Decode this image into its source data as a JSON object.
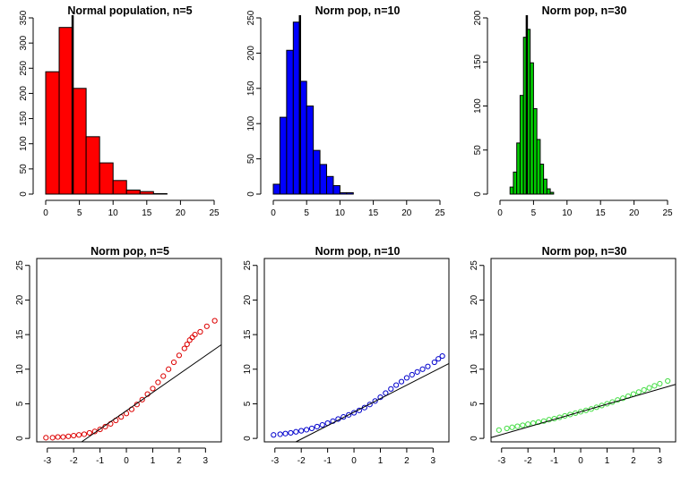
{
  "chart_data": [
    {
      "type": "histogram",
      "title": "Normal population, n=5",
      "color": "#ff0000",
      "bin_width": 2,
      "bin_starts": [
        0,
        2,
        4,
        6,
        8,
        10,
        12,
        14,
        16
      ],
      "counts": [
        243,
        331,
        210,
        114,
        62,
        27,
        8,
        5,
        1
      ],
      "mean_line_x": 4,
      "xlim": [
        0,
        25
      ],
      "xticks": [
        0,
        5,
        10,
        15,
        20,
        25
      ],
      "ylim": [
        0,
        350
      ],
      "yticks": [
        0,
        50,
        100,
        150,
        200,
        250,
        300,
        350
      ]
    },
    {
      "type": "histogram",
      "title": "Norm pop, n=10",
      "color": "#0000ff",
      "bin_width": 1,
      "bin_starts": [
        0,
        1,
        2,
        3,
        4,
        5,
        6,
        7,
        8,
        9,
        10,
        11
      ],
      "counts": [
        14,
        109,
        204,
        244,
        160,
        125,
        62,
        42,
        25,
        12,
        2,
        2
      ],
      "mean_line_x": 4,
      "xlim": [
        0,
        25
      ],
      "xticks": [
        0,
        5,
        10,
        15,
        20,
        25
      ],
      "ylim": [
        0,
        250
      ],
      "yticks": [
        0,
        50,
        100,
        150,
        200,
        250
      ]
    },
    {
      "type": "histogram",
      "title": "Norm pop, n=30",
      "color": "#00cc00",
      "bin_width": 0.5,
      "bin_starts": [
        1.5,
        2,
        2.5,
        3,
        3.5,
        4,
        4.5,
        5,
        5.5,
        6,
        6.5,
        7,
        7.5
      ],
      "counts": [
        8,
        25,
        58,
        112,
        178,
        187,
        149,
        97,
        62,
        34,
        17,
        6,
        2
      ],
      "mean_line_x": 4,
      "xlim": [
        0,
        25
      ],
      "xticks": [
        0,
        5,
        10,
        15,
        20,
        25
      ],
      "ylim": [
        0,
        200
      ],
      "yticks": [
        0,
        50,
        100,
        150,
        200
      ]
    },
    {
      "type": "scatter",
      "subtype": "normal-qq",
      "title": "Norm pop, n=5",
      "color": "#dd0000",
      "points": [
        [
          -3.05,
          0.1
        ],
        [
          -2.8,
          0.1
        ],
        [
          -2.6,
          0.2
        ],
        [
          -2.4,
          0.2
        ],
        [
          -2.2,
          0.3
        ],
        [
          -2.0,
          0.4
        ],
        [
          -1.8,
          0.5
        ],
        [
          -1.6,
          0.6
        ],
        [
          -1.4,
          0.8
        ],
        [
          -1.2,
          1.0
        ],
        [
          -1.0,
          1.3
        ],
        [
          -0.8,
          1.7
        ],
        [
          -0.6,
          2.1
        ],
        [
          -0.4,
          2.6
        ],
        [
          -0.2,
          3.1
        ],
        [
          0.0,
          3.6
        ],
        [
          0.2,
          4.2
        ],
        [
          0.4,
          4.9
        ],
        [
          0.6,
          5.6
        ],
        [
          0.8,
          6.4
        ],
        [
          1.0,
          7.2
        ],
        [
          1.2,
          8.1
        ],
        [
          1.4,
          9.0
        ],
        [
          1.6,
          10.0
        ],
        [
          1.8,
          11.0
        ],
        [
          2.0,
          12.0
        ],
        [
          2.2,
          13.0
        ],
        [
          2.3,
          13.6
        ],
        [
          2.4,
          14.2
        ],
        [
          2.5,
          14.6
        ],
        [
          2.6,
          15.0
        ],
        [
          2.8,
          15.4
        ],
        [
          3.05,
          16.2
        ],
        [
          3.35,
          17.0
        ]
      ],
      "reference_line": {
        "intercept": 4.0,
        "slope": 2.65
      },
      "xlim": [
        -3.4,
        3.6
      ],
      "xticks": [
        -3,
        -2,
        -1,
        0,
        1,
        2,
        3
      ],
      "ylim": [
        -0.5,
        26
      ],
      "yticks": [
        0,
        5,
        10,
        15,
        20,
        25
      ]
    },
    {
      "type": "scatter",
      "subtype": "normal-qq",
      "title": "Norm pop, n=10",
      "color": "#0000cc",
      "points": [
        [
          -3.05,
          0.5
        ],
        [
          -2.8,
          0.6
        ],
        [
          -2.6,
          0.7
        ],
        [
          -2.4,
          0.8
        ],
        [
          -2.2,
          0.95
        ],
        [
          -2.0,
          1.1
        ],
        [
          -1.8,
          1.25
        ],
        [
          -1.6,
          1.45
        ],
        [
          -1.4,
          1.7
        ],
        [
          -1.2,
          1.95
        ],
        [
          -1.0,
          2.2
        ],
        [
          -0.8,
          2.5
        ],
        [
          -0.6,
          2.8
        ],
        [
          -0.4,
          3.1
        ],
        [
          -0.2,
          3.4
        ],
        [
          0.0,
          3.7
        ],
        [
          0.2,
          4.05
        ],
        [
          0.4,
          4.45
        ],
        [
          0.6,
          4.9
        ],
        [
          0.8,
          5.4
        ],
        [
          1.0,
          5.95
        ],
        [
          1.2,
          6.55
        ],
        [
          1.4,
          7.15
        ],
        [
          1.6,
          7.7
        ],
        [
          1.8,
          8.2
        ],
        [
          2.0,
          8.75
        ],
        [
          2.2,
          9.2
        ],
        [
          2.4,
          9.6
        ],
        [
          2.6,
          10.0
        ],
        [
          2.8,
          10.4
        ],
        [
          3.05,
          11.0
        ],
        [
          3.2,
          11.5
        ],
        [
          3.35,
          11.9
        ]
      ],
      "reference_line": {
        "intercept": 3.8,
        "slope": 1.95
      },
      "xlim": [
        -3.4,
        3.6
      ],
      "xticks": [
        -3,
        -2,
        -1,
        0,
        1,
        2,
        3
      ],
      "ylim": [
        -0.5,
        26
      ],
      "yticks": [
        0,
        5,
        10,
        15,
        20,
        25
      ]
    },
    {
      "type": "scatter",
      "subtype": "normal-qq",
      "title": "Norm pop, n=30",
      "color": "#44dd44",
      "points": [
        [
          -3.1,
          1.2
        ],
        [
          -2.8,
          1.45
        ],
        [
          -2.6,
          1.6
        ],
        [
          -2.4,
          1.75
        ],
        [
          -2.2,
          1.9
        ],
        [
          -2.0,
          2.05
        ],
        [
          -1.8,
          2.2
        ],
        [
          -1.6,
          2.35
        ],
        [
          -1.4,
          2.5
        ],
        [
          -1.2,
          2.7
        ],
        [
          -1.0,
          2.85
        ],
        [
          -0.8,
          3.05
        ],
        [
          -0.6,
          3.25
        ],
        [
          -0.4,
          3.45
        ],
        [
          -0.2,
          3.65
        ],
        [
          0.0,
          3.85
        ],
        [
          0.2,
          4.05
        ],
        [
          0.4,
          4.25
        ],
        [
          0.6,
          4.5
        ],
        [
          0.8,
          4.75
        ],
        [
          1.0,
          5.0
        ],
        [
          1.2,
          5.25
        ],
        [
          1.4,
          5.55
        ],
        [
          1.6,
          5.8
        ],
        [
          1.8,
          6.1
        ],
        [
          2.0,
          6.4
        ],
        [
          2.2,
          6.7
        ],
        [
          2.4,
          7.0
        ],
        [
          2.6,
          7.3
        ],
        [
          2.8,
          7.6
        ],
        [
          3.0,
          7.9
        ],
        [
          3.3,
          8.3
        ]
      ],
      "reference_line": {
        "intercept": 3.85,
        "slope": 1.1
      },
      "xlim": [
        -3.4,
        3.6
      ],
      "xticks": [
        -3,
        -2,
        -1,
        0,
        1,
        2,
        3
      ],
      "ylim": [
        -0.5,
        26
      ],
      "yticks": [
        0,
        5,
        10,
        15,
        20,
        25
      ]
    }
  ]
}
